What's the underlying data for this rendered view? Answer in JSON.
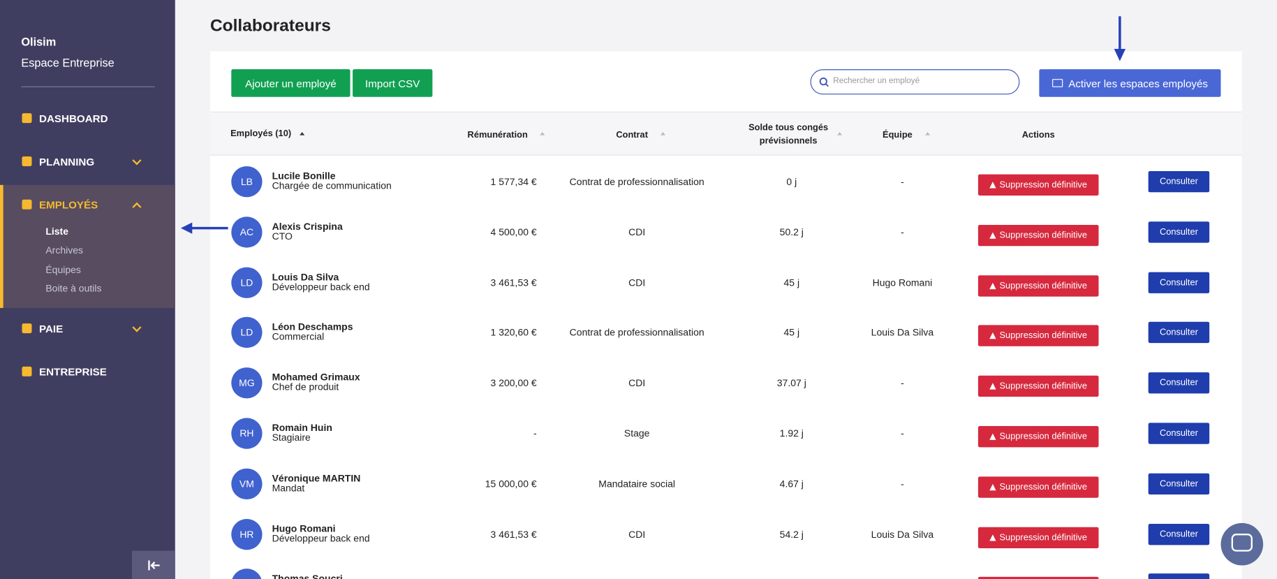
{
  "sidebar": {
    "brand": "Olisim",
    "subtitle": "Espace Entreprise",
    "menu": [
      {
        "label": "DASHBOARD"
      },
      {
        "label": "PLANNING"
      },
      {
        "label": "EMPLOYÉS",
        "items": [
          "Liste",
          "Archives",
          "Équipes",
          "Boite à outils"
        ]
      },
      {
        "label": "PAIE"
      },
      {
        "label": "ENTREPRISE"
      }
    ]
  },
  "header": {
    "title": "Collaborateurs"
  },
  "toolbar": {
    "add": "Ajouter un employé",
    "import": "Import CSV",
    "search_placeholder": "Rechercher un employé",
    "activate": "Activer les espaces employés"
  },
  "table": {
    "headers": [
      "Employés (10)",
      "Rémunération",
      "Contrat",
      "Solde tous congés prévisionnels",
      "Équipe",
      "Actions"
    ],
    "delete_label": "Suppression définitive",
    "view_label": "Consulter",
    "rows": [
      {
        "initials": "LB",
        "name": "Lucile Bonille",
        "role": "Chargée de communication",
        "salary": "1 577,34 €",
        "contract": "Contrat de professionnalisation",
        "balance": "0 j",
        "team": "-"
      },
      {
        "initials": "AC",
        "name": "Alexis Crispina",
        "role": "CTO",
        "salary": "4 500,00 €",
        "contract": "CDI",
        "balance": "50.2 j",
        "team": "-"
      },
      {
        "initials": "LD",
        "name": "Louis Da Silva",
        "role": "Développeur back end",
        "salary": "3 461,53 €",
        "contract": "CDI",
        "balance": "45 j",
        "team": "Hugo Romani"
      },
      {
        "initials": "LD",
        "name": "Léon Deschamps",
        "role": "Commercial",
        "salary": "1 320,60 €",
        "contract": "Contrat de professionnalisation",
        "balance": "45 j",
        "team": "Louis Da Silva"
      },
      {
        "initials": "MG",
        "name": "Mohamed Grimaux",
        "role": "Chef de produit",
        "salary": "3 200,00 €",
        "contract": "CDI",
        "balance": "37.07 j",
        "team": "-"
      },
      {
        "initials": "RH",
        "name": "Romain Huin",
        "role": "Stagiaire",
        "salary": "-",
        "contract": "Stage",
        "balance": "1.92 j",
        "team": "-"
      },
      {
        "initials": "VM",
        "name": "Véronique MARTIN",
        "role": "Mandat",
        "salary": "15 000,00 €",
        "contract": "Mandataire social",
        "balance": "4.67 j",
        "team": "-"
      },
      {
        "initials": "HR",
        "name": "Hugo Romani",
        "role": "Développeur back end",
        "salary": "3 461,53 €",
        "contract": "CDI",
        "balance": "54.2 j",
        "team": "Louis Da Silva"
      }
    ],
    "partial_row_name": "Thomas Soucri"
  }
}
